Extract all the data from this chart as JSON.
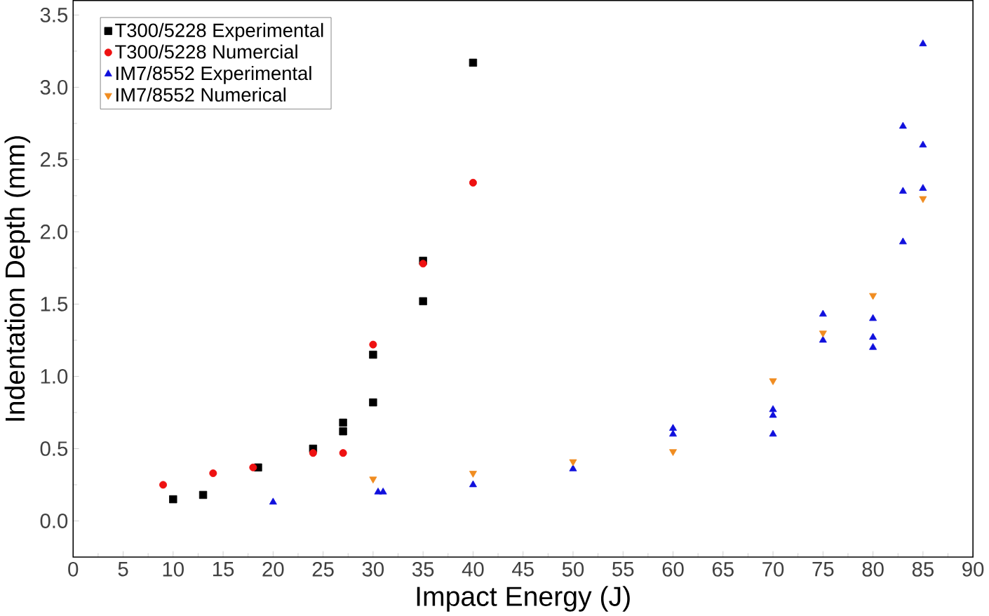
{
  "chart_data": {
    "type": "scatter",
    "xlabel": "Impact Energy (J)",
    "ylabel": "Indentation Depth (mm)",
    "xlim": [
      0,
      90
    ],
    "xticks": [
      0,
      5,
      10,
      15,
      20,
      25,
      30,
      35,
      40,
      45,
      50,
      55,
      60,
      65,
      70,
      75,
      80,
      85,
      90
    ],
    "ylim": [
      -0.25,
      3.6
    ],
    "yticks": [
      {
        "value": 0,
        "label": "0.0"
      },
      0.5,
      {
        "value": 1,
        "label": "1.0"
      },
      1.5,
      {
        "value": 2,
        "label": "2.0"
      },
      2.5,
      {
        "value": 3,
        "label": "3.0"
      },
      3.5
    ],
    "legend": "top left",
    "grid": false,
    "series": [
      {
        "name": "T300/5228 Experimental",
        "color": "#000000",
        "marker": "square",
        "x": [
          10,
          13,
          18.5,
          24,
          27,
          27,
          30,
          30,
          35,
          35,
          40
        ],
        "values": [
          0.15,
          0.18,
          0.37,
          0.5,
          0.62,
          0.68,
          0.82,
          1.15,
          1.52,
          1.8,
          3.17
        ]
      },
      {
        "name": "T300/5228 Numercial",
        "color": "#ee1111",
        "marker": "circle",
        "x": [
          9,
          14,
          18,
          24,
          27,
          30,
          35,
          40
        ],
        "values": [
          0.25,
          0.33,
          0.37,
          0.47,
          0.47,
          1.22,
          1.78,
          2.34
        ]
      },
      {
        "name": "IM7/8552 Experimental",
        "color": "#1010dd",
        "marker": "triangle",
        "x": [
          20,
          30.5,
          31,
          40,
          50,
          60,
          60,
          70,
          70,
          70,
          75,
          75,
          80,
          80,
          80,
          83,
          83,
          83,
          85,
          85,
          85
        ],
        "values": [
          0.13,
          0.2,
          0.2,
          0.25,
          0.36,
          0.6,
          0.64,
          0.6,
          0.73,
          0.77,
          1.25,
          1.43,
          1.2,
          1.27,
          1.4,
          1.93,
          2.28,
          2.73,
          2.3,
          2.6,
          3.3
        ]
      },
      {
        "name": "IM7/8552 Numerical",
        "color": "#f08c20",
        "marker": "triangle down",
        "x": [
          30,
          40,
          50,
          60,
          70,
          75,
          80,
          85
        ],
        "values": [
          0.29,
          0.33,
          0.41,
          0.48,
          0.97,
          1.3,
          1.56,
          2.23
        ]
      }
    ]
  }
}
